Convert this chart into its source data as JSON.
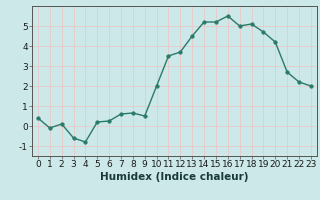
{
  "x": [
    0,
    1,
    2,
    3,
    4,
    5,
    6,
    7,
    8,
    9,
    10,
    11,
    12,
    13,
    14,
    15,
    16,
    17,
    18,
    19,
    20,
    21,
    22,
    23
  ],
  "y": [
    0.4,
    -0.1,
    0.1,
    -0.6,
    -0.8,
    0.2,
    0.25,
    0.6,
    0.65,
    0.5,
    2.0,
    3.5,
    3.7,
    4.5,
    5.2,
    5.2,
    5.5,
    5.0,
    5.1,
    4.7,
    4.2,
    2.7,
    2.2,
    2.0
  ],
  "line_color": "#2a7a6a",
  "marker_color": "#2a7a6a",
  "bg_color": "#cce8e8",
  "grid_color": "#e8c8c8",
  "xlabel": "Humidex (Indice chaleur)",
  "xlim": [
    -0.5,
    23.5
  ],
  "ylim": [
    -1.5,
    6.0
  ],
  "yticks": [
    -1,
    0,
    1,
    2,
    3,
    4,
    5
  ],
  "xticks": [
    0,
    1,
    2,
    3,
    4,
    5,
    6,
    7,
    8,
    9,
    10,
    11,
    12,
    13,
    14,
    15,
    16,
    17,
    18,
    19,
    20,
    21,
    22,
    23
  ],
  "tick_fontsize": 6.5,
  "xlabel_fontsize": 7.5,
  "marker_size": 2.5,
  "line_width": 1.0,
  "spine_color": "#555555"
}
